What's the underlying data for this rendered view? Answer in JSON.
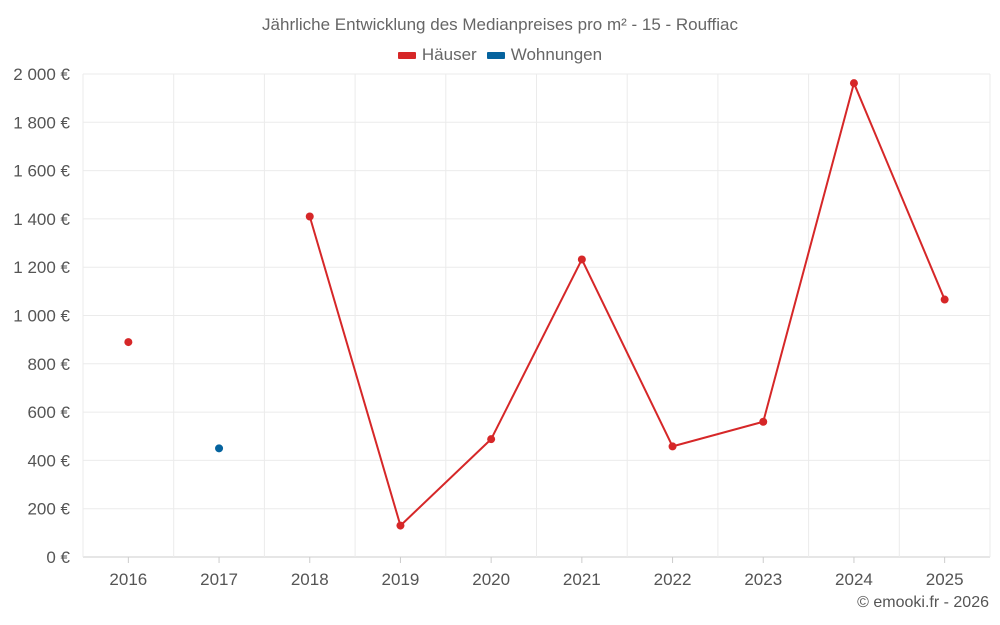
{
  "chart_data": {
    "type": "line",
    "title": "Jährliche Entwicklung des Medianpreises pro m² - 15 - Rouffiac",
    "categories": [
      "2016",
      "2017",
      "2018",
      "2019",
      "2020",
      "2021",
      "2022",
      "2023",
      "2024",
      "2025"
    ],
    "series": [
      {
        "name": "Häuser",
        "color": "#d62728",
        "values": [
          890,
          null,
          1410,
          130,
          488,
          1232,
          458,
          560,
          1962,
          1066
        ]
      },
      {
        "name": "Wohnungen",
        "color": "#05639e",
        "values": [
          null,
          450,
          null,
          null,
          null,
          null,
          null,
          null,
          null,
          null
        ]
      }
    ],
    "y_ticks": [
      "0 €",
      "200 €",
      "400 €",
      "600 €",
      "800 €",
      "1 000 €",
      "1 200 €",
      "1 400 €",
      "1 600 €",
      "1 800 €",
      "2 000 €"
    ],
    "ylim": [
      0,
      2000
    ],
    "ystep": 200,
    "xlabel": "",
    "ylabel": "",
    "grid": true,
    "legend_position": "top-center"
  },
  "credit": "© emooki.fr - 2026"
}
